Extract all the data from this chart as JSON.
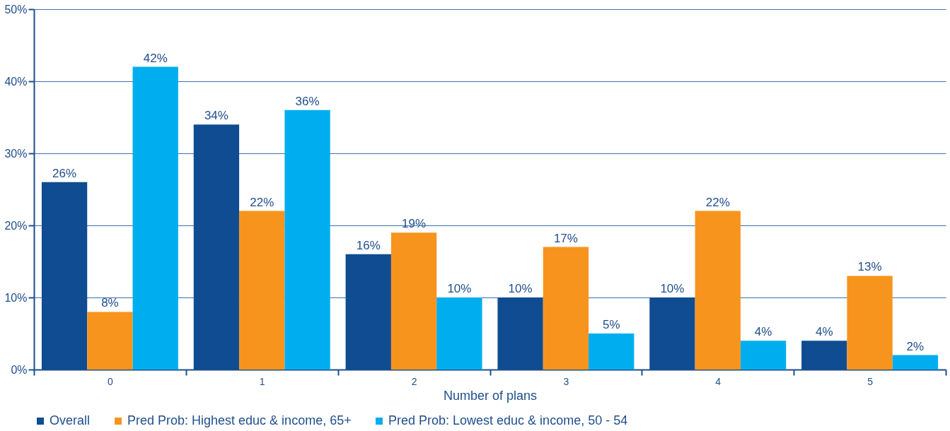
{
  "chart_data": {
    "type": "bar",
    "xlabel": "Number of plans",
    "categories": [
      "0",
      "1",
      "2",
      "3",
      "4",
      "5"
    ],
    "series": [
      {
        "name": "Overall",
        "color": "#0f4c92",
        "values": [
          26,
          34,
          16,
          10,
          10,
          4
        ],
        "value_labels": [
          "26%",
          "34%",
          "16%",
          "10%",
          "10%",
          "4%"
        ]
      },
      {
        "name": "Pred Prob: Highest educ & income, 65+",
        "color": "#f7941d",
        "values": [
          8,
          22,
          19,
          17,
          22,
          13
        ],
        "value_labels": [
          "8%",
          "22%",
          "19%",
          "17%",
          "22%",
          "13%"
        ]
      },
      {
        "name": "Pred Prob:  Lowest educ & income, 50 - 54",
        "color": "#00aeef",
        "values": [
          42,
          36,
          10,
          5,
          4,
          2
        ],
        "value_labels": [
          "42%",
          "36%",
          "10%",
          "5%",
          "4%",
          "2%"
        ]
      }
    ],
    "ylim": [
      0,
      50
    ],
    "yticks": [
      {
        "value": 0,
        "label": "0%"
      },
      {
        "value": 10,
        "label": "10%"
      },
      {
        "value": 20,
        "label": "20%"
      },
      {
        "value": 30,
        "label": "30%"
      },
      {
        "value": 40,
        "label": "40%"
      },
      {
        "value": 50,
        "label": "50%"
      }
    ],
    "grid": "y",
    "legend": "bottom"
  }
}
